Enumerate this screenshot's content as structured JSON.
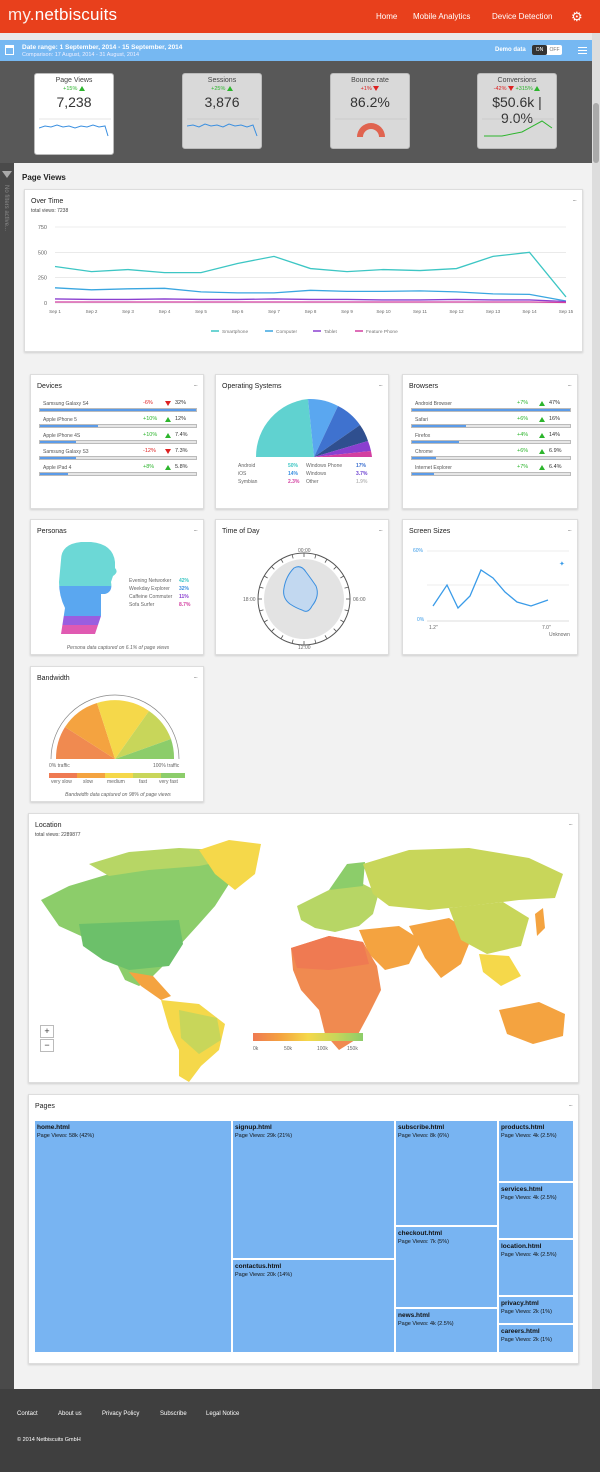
{
  "header": {
    "logo_my": "my.",
    "logo_brand": "netbiscuits",
    "nav": [
      "Home",
      "Mobile Analytics",
      "Device Detection"
    ]
  },
  "range": {
    "line1": "Date range: 1 September, 2014 - 15 September, 2014",
    "line2": "Comparison: 17 August, 2014 - 31 August, 2014",
    "demo_label": "Demo data",
    "toggle_on": "ON",
    "toggle_off": "OFF"
  },
  "kpis": [
    {
      "title": "Page Views",
      "delta": "+15%",
      "value": "7,238"
    },
    {
      "title": "Sessions",
      "delta": "+25%",
      "value": "3,876"
    },
    {
      "title": "Bounce rate",
      "delta": "+1%",
      "value": "86.2%"
    },
    {
      "title": "Conversions",
      "delta1": "-42%",
      "delta2": "+315%",
      "value": "$50.6k | 9.0%"
    }
  ],
  "sidebar": {
    "text": "No filters active..."
  },
  "page_title": "Page Views",
  "overtime": {
    "title": "Over Time",
    "subtitle": "total views: 7238"
  },
  "chart_data": {
    "type": "line",
    "title": "Over Time",
    "categories": [
      "Sep 1",
      "Sep 2",
      "Sep 3",
      "Sep 4",
      "Sep 5",
      "Sep 6",
      "Sep 7",
      "Sep 8",
      "Sep 9",
      "Sep 10",
      "Sep 11",
      "Sep 12",
      "Sep 13",
      "Sep 14",
      "Sep 15"
    ],
    "yticks": [
      "0",
      "250",
      "500",
      "750"
    ],
    "ylim": [
      0,
      750
    ],
    "series": [
      {
        "name": "Smartphone",
        "color": "#3dc6c4",
        "values": [
          360,
          310,
          330,
          300,
          300,
          390,
          460,
          340,
          310,
          330,
          320,
          340,
          460,
          500,
          60
        ]
      },
      {
        "name": "Computer",
        "color": "#3aa6e0",
        "values": [
          150,
          130,
          140,
          145,
          110,
          100,
          100,
          125,
          115,
          115,
          120,
          110,
          90,
          85,
          20
        ]
      },
      {
        "name": "Tablet",
        "color": "#8a3fd0",
        "values": [
          40,
          35,
          35,
          40,
          35,
          35,
          40,
          35,
          35,
          30,
          30,
          35,
          30,
          30,
          15
        ]
      },
      {
        "name": "Feature Phone",
        "color": "#d33fa0",
        "values": [
          10,
          10,
          10,
          10,
          10,
          10,
          10,
          10,
          10,
          10,
          10,
          10,
          10,
          10,
          5
        ]
      }
    ]
  },
  "devices": {
    "title": "Devices",
    "rows": [
      {
        "label": "Samsung Galaxy S4",
        "delta": "-6%",
        "dir": "down",
        "value": "32%",
        "frac": 1.0
      },
      {
        "label": "Apple iPhone 5",
        "delta": "+10%",
        "dir": "up",
        "value": "12%",
        "frac": 0.37
      },
      {
        "label": "Apple iPhone 4S",
        "delta": "+10%",
        "dir": "up",
        "value": "7.4%",
        "frac": 0.23
      },
      {
        "label": "Samsung Galaxy S3",
        "delta": "-12%",
        "dir": "down",
        "value": "7.3%",
        "frac": 0.23
      },
      {
        "label": "Apple iPad 4",
        "delta": "+8%",
        "dir": "up",
        "value": "5.8%",
        "frac": 0.18
      }
    ]
  },
  "os": {
    "title": "Operating Systems",
    "rows": [
      {
        "label": "Android",
        "value": "50%",
        "color": "#3dc6c4"
      },
      {
        "label": "iOS",
        "value": "14%",
        "color": "#3a8fe0"
      },
      {
        "label": "Symbian",
        "value": "2.3%",
        "color": "#d33fa0"
      },
      {
        "label": "Windows Phone",
        "value": "17%",
        "color": "#3a6fd0"
      },
      {
        "label": "Windows",
        "value": "3.7%",
        "color": "#6a3fd0"
      },
      {
        "label": "Other",
        "value": "1.9%",
        "color": "#bbbbbb"
      }
    ]
  },
  "browsers": {
    "title": "Browsers",
    "rows": [
      {
        "label": "Android Browser",
        "delta": "+7%",
        "dir": "up",
        "value": "47%",
        "frac": 1.0
      },
      {
        "label": "Safari",
        "delta": "+6%",
        "dir": "up",
        "value": "16%",
        "frac": 0.34
      },
      {
        "label": "Firefox",
        "delta": "+4%",
        "dir": "up",
        "value": "14%",
        "frac": 0.3
      },
      {
        "label": "Chrome",
        "delta": "+6%",
        "dir": "up",
        "value": "6.9%",
        "frac": 0.15
      },
      {
        "label": "Internet Explorer",
        "delta": "+7%",
        "dir": "up",
        "value": "6.4%",
        "frac": 0.14
      }
    ]
  },
  "personas": {
    "title": "Personas",
    "rows": [
      {
        "label": "Evening Networker",
        "value": "42%",
        "color": "#3dc6c4"
      },
      {
        "label": "Weekday Explorer",
        "value": "32%",
        "color": "#3a8fe0"
      },
      {
        "label": "Caffeine Commuter",
        "value": "11%",
        "color": "#8a3fd0"
      },
      {
        "label": "Sofa Surfer",
        "value": "8.7%",
        "color": "#d33fa0"
      }
    ],
    "note": "Persona data captured on 6.1% of page views"
  },
  "timeofday": {
    "title": "Time of Day",
    "labels": [
      "00:00",
      "06:00",
      "12:00",
      "18:00"
    ]
  },
  "screens": {
    "title": "Screen Sizes",
    "ylabels": [
      "60%",
      "0%"
    ],
    "xlabels": [
      "1.2\"",
      "7.0\"",
      "Unknown"
    ]
  },
  "bandwidth": {
    "title": "Bandwidth",
    "left": "0% traffic",
    "right": "100% traffic",
    "scale": [
      "very slow",
      "slow",
      "medium",
      "fast",
      "very fast"
    ],
    "note": "Bandwidth data captured on 98% of page views"
  },
  "location": {
    "title": "Location",
    "subtitle": "total views: 2289877",
    "legend": [
      "0k",
      "50k",
      "100k",
      "150k"
    ],
    "zoom_in": "+",
    "zoom_out": "−"
  },
  "pages": {
    "title": "Pages",
    "cells": [
      {
        "name": "home.html",
        "views": "Page Views: 58k (42%)"
      },
      {
        "name": "signup.html",
        "views": "Page Views: 29k (21%)"
      },
      {
        "name": "contactus.html",
        "views": "Page Views: 20k (14%)"
      },
      {
        "name": "subscribe.html",
        "views": "Page Views: 8k (6%)"
      },
      {
        "name": "checkout.html",
        "views": "Page Views: 7k (5%)"
      },
      {
        "name": "news.html",
        "views": "Page Views: 4k (2.5%)"
      },
      {
        "name": "products.html",
        "views": "Page Views: 4k (2.5%)"
      },
      {
        "name": "services.html",
        "views": "Page Views: 4k (2.5%)"
      },
      {
        "name": "location.html",
        "views": "Page Views: 4k (2.5%)"
      },
      {
        "name": "privacy.html",
        "views": "Page Views: 2k (1%)"
      },
      {
        "name": "careers.html",
        "views": "Page Views: 2k (1%)"
      }
    ]
  },
  "footer": {
    "links": [
      "Contact",
      "About us",
      "Privacy Policy",
      "Subscribe",
      "Legal Notice"
    ],
    "copyright": "© 2014 Netbiscuits GmbH"
  },
  "dots": "..."
}
